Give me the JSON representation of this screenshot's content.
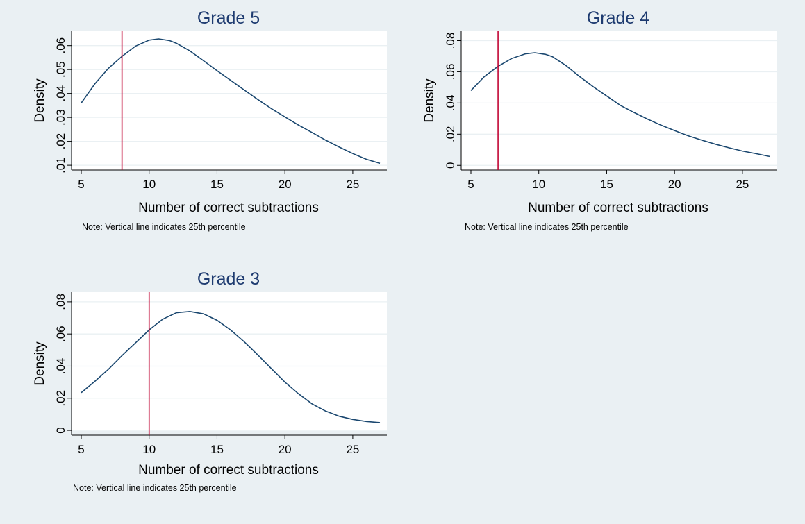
{
  "chart_data": [
    {
      "type": "line",
      "title": "Grade 5",
      "xlabel": "Number of correct subtractions",
      "ylabel": "Density",
      "note": "Note: Vertical line indicates 25th percentile",
      "xlim": [
        5,
        27
      ],
      "ylim": [
        0.008,
        0.066
      ],
      "xticks": [
        5,
        10,
        15,
        20,
        25
      ],
      "xtick_labels": [
        "5",
        "10",
        "15",
        "20",
        "25"
      ],
      "yticks": [
        0.01,
        0.02,
        0.03,
        0.04,
        0.05,
        0.06
      ],
      "ytick_labels": [
        ".01",
        ".02",
        ".03",
        ".04",
        ".05",
        ".06"
      ],
      "grid": true,
      "vline": 8,
      "series": [
        {
          "x": [
            5,
            6,
            7,
            8,
            9,
            10,
            10.7,
            11.5,
            12,
            13,
            14,
            15,
            16,
            17,
            18,
            19,
            20,
            21,
            22,
            23,
            24,
            25,
            26,
            27
          ],
          "y": [
            0.036,
            0.044,
            0.0505,
            0.0555,
            0.0598,
            0.0623,
            0.0628,
            0.0621,
            0.061,
            0.0578,
            0.0537,
            0.0495,
            0.0455,
            0.0415,
            0.0375,
            0.0337,
            0.0302,
            0.0268,
            0.0237,
            0.0205,
            0.0176,
            0.0149,
            0.0125,
            0.0108
          ]
        }
      ]
    },
    {
      "type": "line",
      "title": "Grade 4",
      "xlabel": "Number of correct subtractions",
      "ylabel": "Density",
      "note": "Note: Vertical line indicates 25th percentile",
      "xlim": [
        5,
        27
      ],
      "ylim": [
        -0.003,
        0.086
      ],
      "xticks": [
        5,
        10,
        15,
        20,
        25
      ],
      "xtick_labels": [
        "5",
        "10",
        "15",
        "20",
        "25"
      ],
      "yticks": [
        0,
        0.02,
        0.04,
        0.06,
        0.08
      ],
      "ytick_labels": [
        "0",
        ".02",
        ".04",
        ".06",
        ".08"
      ],
      "grid": true,
      "vline": 7,
      "series": [
        {
          "x": [
            5,
            6,
            7,
            8,
            9,
            9.7,
            10.5,
            11,
            12,
            13,
            14,
            15,
            16,
            17,
            18,
            19,
            20,
            21,
            22,
            23,
            24,
            25,
            26,
            27
          ],
          "y": [
            0.048,
            0.057,
            0.0635,
            0.0685,
            0.0715,
            0.0722,
            0.0712,
            0.0697,
            0.064,
            0.057,
            0.0505,
            0.0445,
            0.0385,
            0.034,
            0.0297,
            0.0258,
            0.0223,
            0.019,
            0.0162,
            0.0136,
            0.0113,
            0.0092,
            0.0075,
            0.0057
          ]
        }
      ]
    },
    {
      "type": "line",
      "title": "Grade 3",
      "xlabel": "Number of correct subtractions",
      "ylabel": "Density",
      "note": "Note: Vertical line indicates 25th percentile",
      "xlim": [
        5,
        27
      ],
      "ylim": [
        -0.003,
        0.086
      ],
      "xticks": [
        5,
        10,
        15,
        20,
        25
      ],
      "xtick_labels": [
        "5",
        "10",
        "15",
        "20",
        "25"
      ],
      "yticks": [
        0,
        0.02,
        0.04,
        0.06,
        0.08
      ],
      "ytick_labels": [
        "0",
        ".02",
        ".04",
        ".06",
        ".08"
      ],
      "grid": true,
      "vline": 10,
      "series": [
        {
          "x": [
            5,
            6,
            7,
            8,
            9,
            10,
            11,
            12,
            13,
            14,
            15,
            16,
            17,
            18,
            19,
            20,
            21,
            22,
            23,
            24,
            25,
            26,
            27
          ],
          "y": [
            0.0235,
            0.0305,
            0.038,
            0.0465,
            0.0545,
            0.0625,
            0.0692,
            0.0732,
            0.074,
            0.0725,
            0.0685,
            0.0625,
            0.0552,
            0.047,
            0.0385,
            0.03,
            0.0228,
            0.0165,
            0.012,
            0.0088,
            0.0068,
            0.0055,
            0.0048
          ]
        }
      ]
    }
  ],
  "colors": {
    "background": "#eaf0f3",
    "plot_area": "#ffffff",
    "title": "#1e3b70",
    "line": "#1a476f",
    "vline": "#c10534"
  }
}
